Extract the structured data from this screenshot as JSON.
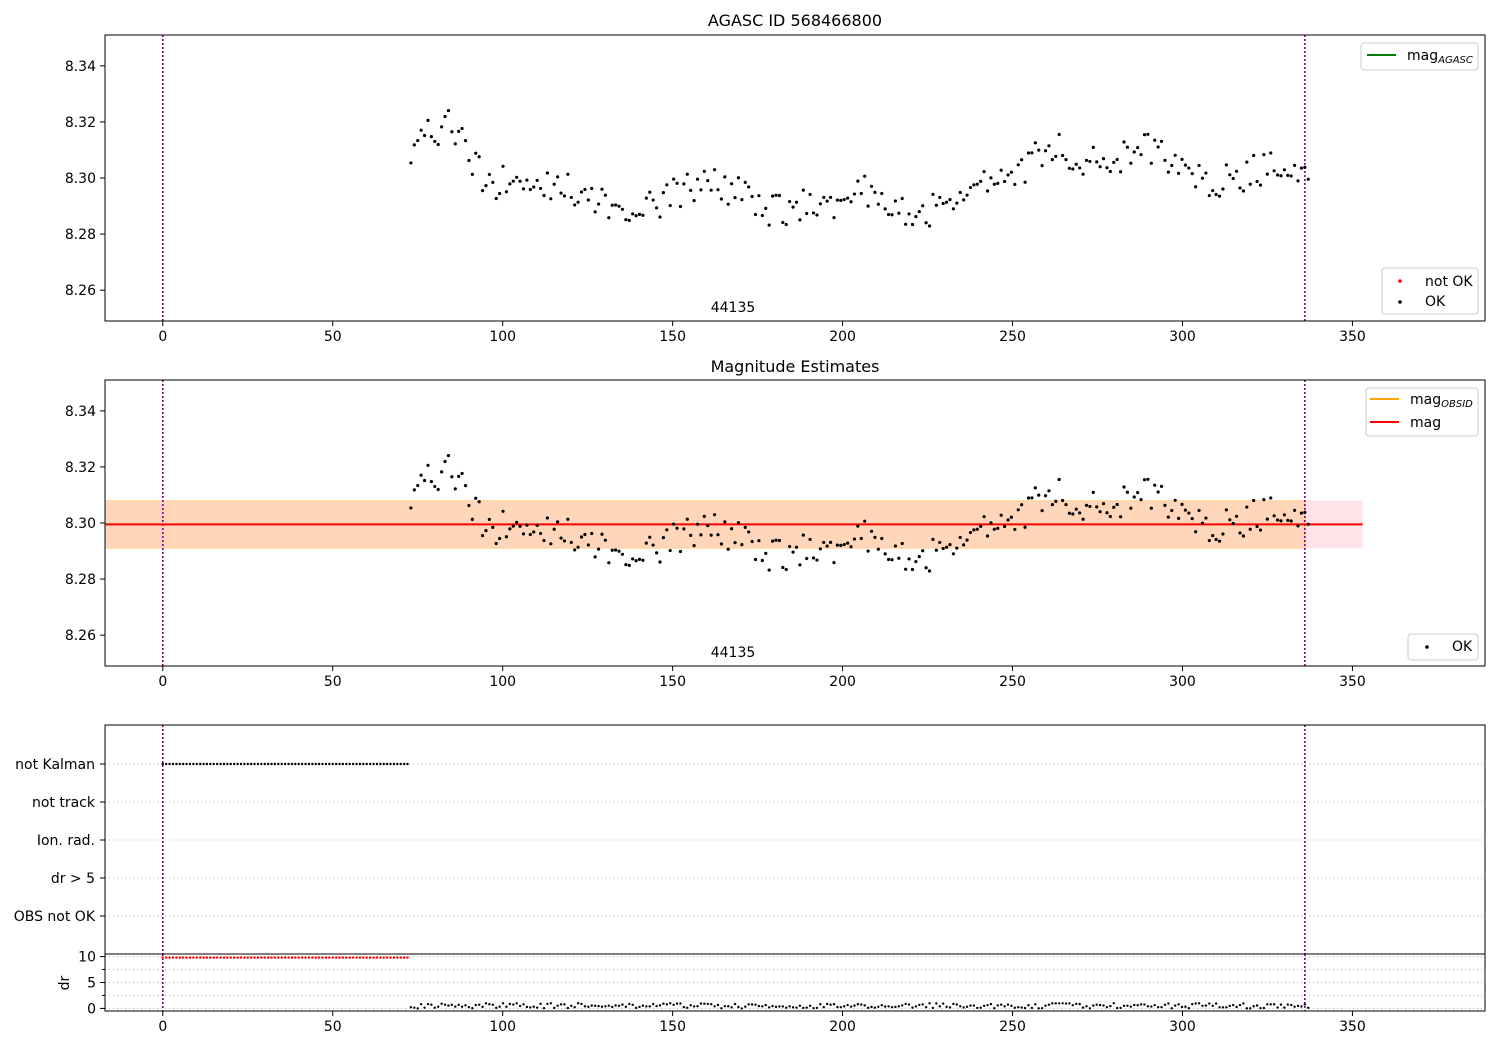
{
  "figure": {
    "x_ticks": [
      0,
      50,
      100,
      150,
      200,
      250,
      300,
      350
    ]
  },
  "panels": {
    "top": {
      "title": "AGASC ID 568466800",
      "obsid_label": "44135",
      "y_ticks": [
        "8.26",
        "8.28",
        "8.30",
        "8.32",
        "8.34"
      ],
      "legend_line": {
        "label": "mag",
        "subscript": "AGASC",
        "color": "#008000"
      },
      "legend_points": [
        {
          "label": "not OK",
          "color": "#ff0000"
        },
        {
          "label": "OK",
          "color": "#000000"
        }
      ]
    },
    "middle": {
      "title": "Magnitude Estimates",
      "obsid_label": "44135",
      "y_ticks": [
        "8.26",
        "8.28",
        "8.30",
        "8.32",
        "8.34"
      ],
      "legend_lines": [
        {
          "label": "mag",
          "subscript": "OBSID",
          "color": "#ffa500"
        },
        {
          "label": "mag",
          "subscript": "",
          "color": "#ff0000"
        }
      ],
      "legend_points": [
        {
          "label": "OK",
          "color": "#000000"
        }
      ]
    },
    "flags": {
      "y_labels": [
        "not Kalman",
        "not track",
        "Ion. rad.",
        "dr > 5",
        "OBS not OK"
      ]
    },
    "dr": {
      "y_label": "dr",
      "y_ticks": [
        "0",
        "5",
        "10"
      ]
    }
  },
  "chart_data": [
    {
      "type": "scatter",
      "title": "AGASC ID 568466800",
      "xlim": [
        -17,
        389
      ],
      "ylim": [
        8.249,
        8.351
      ],
      "annotation": "44135",
      "vlines": [
        0,
        336
      ],
      "series": [
        {
          "name": "OK",
          "color": "#000000",
          "y_start": 8.311,
          "x_start": 73,
          "x_end": 337,
          "n": 264,
          "anchors": [
            [
              73,
              8.311
            ],
            [
              85,
              8.32
            ],
            [
              95,
              8.298
            ],
            [
              110,
              8.3
            ],
            [
              125,
              8.293
            ],
            [
              140,
              8.288
            ],
            [
              160,
              8.3
            ],
            [
              180,
              8.288
            ],
            [
              200,
              8.292
            ],
            [
              205,
              8.298
            ],
            [
              220,
              8.285
            ],
            [
              235,
              8.295
            ],
            [
              250,
              8.3
            ],
            [
              262,
              8.312
            ],
            [
              275,
              8.305
            ],
            [
              290,
              8.31
            ],
            [
              300,
              8.305
            ],
            [
              310,
              8.298
            ],
            [
              320,
              8.302
            ],
            [
              330,
              8.306
            ],
            [
              337,
              8.301
            ]
          ]
        },
        {
          "name": "not OK",
          "color": "#ff0000",
          "n": 0
        }
      ],
      "agasc_mag": null
    },
    {
      "type": "scatter",
      "title": "Magnitude Estimates",
      "xlim": [
        -17,
        389
      ],
      "ylim": [
        8.249,
        8.351
      ],
      "annotation": "44135",
      "vlines": [
        0,
        336
      ],
      "mag": 8.2995,
      "mag_band": [
        8.291,
        8.308
      ],
      "mag_obsid": 8.2995,
      "mag_obsid_band": [
        8.291,
        8.308
      ],
      "mag_obsid_x_range": [
        -17,
        336
      ],
      "mag_x_range": [
        -17,
        353
      ],
      "series": [
        {
          "name": "OK",
          "color": "#000000",
          "same_as_top": true
        }
      ]
    },
    {
      "type": "scatter",
      "xlim": [
        -17,
        389
      ],
      "categories": [
        "OBS not OK",
        "dr > 5",
        "Ion. rad.",
        "not track",
        "not Kalman"
      ],
      "vlines": [
        0,
        336
      ],
      "flags": {
        "not Kalman": [
          0,
          72
        ],
        "dr > 5": [],
        "Ion. rad.": [],
        "not track": [],
        "OBS not OK": []
      }
    },
    {
      "type": "scatter",
      "xlim": [
        -17,
        389
      ],
      "ylim": [
        -0.5,
        10.5
      ],
      "ylabel": "dr",
      "vlines": [
        0,
        336
      ],
      "series": [
        {
          "name": "dr > 5",
          "color": "#ff0000",
          "x_range": [
            0,
            72
          ],
          "value": 9.8
        },
        {
          "name": "dr",
          "color": "#000000",
          "x_range": [
            73,
            337
          ],
          "value_range": [
            0.0,
            1.0
          ]
        }
      ]
    }
  ]
}
